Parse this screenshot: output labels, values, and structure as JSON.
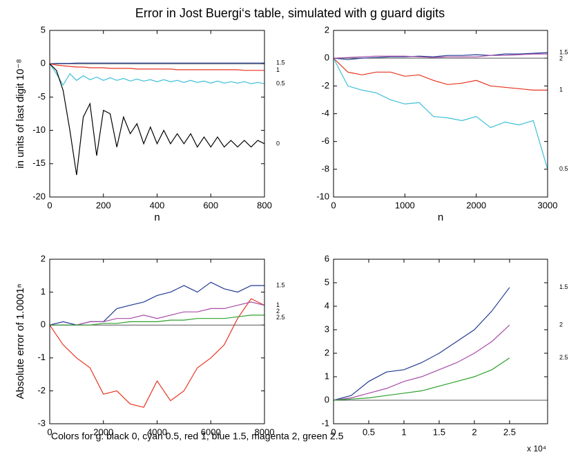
{
  "title": "Error in Jost Buergi‘s table, simulated with g guard digits",
  "footer": "Colors for g: black 0,  cyan 0.5,  red 1,  blue 1.5,  magenta  2, green 2.5",
  "chart_data": [
    {
      "type": "line",
      "ylabel": "in units of last digit 10⁻⁸",
      "xlabel": "n",
      "xlim": [
        0,
        800
      ],
      "ylim": [
        -20,
        5
      ],
      "xticks": [
        0,
        200,
        400,
        600,
        800
      ],
      "yticks": [
        5,
        0,
        -5,
        -10,
        -15,
        -20
      ],
      "x": [
        0,
        25,
        50,
        75,
        100,
        125,
        150,
        175,
        200,
        225,
        250,
        275,
        300,
        325,
        350,
        375,
        400,
        425,
        450,
        475,
        500,
        525,
        550,
        575,
        600,
        625,
        650,
        675,
        700,
        725,
        750,
        775,
        800
      ],
      "series": [
        {
          "name": "1.5",
          "color": "#1f3a93",
          "values": [
            0,
            0.05,
            0.05,
            0.05,
            0.1,
            0.1,
            0.1,
            0.1,
            0.1,
            0.1,
            0.1,
            0.1,
            0.1,
            0.1,
            0.1,
            0.1,
            0.1,
            0.1,
            0.1,
            0.1,
            0.1,
            0.1,
            0.1,
            0.1,
            0.1,
            0.1,
            0.1,
            0.1,
            0.1,
            0.1,
            0.1,
            0.1,
            0.1
          ]
        },
        {
          "name": "1",
          "color": "#e8321e",
          "values": [
            0,
            -0.2,
            -0.3,
            -0.4,
            -0.5,
            -0.5,
            -0.6,
            -0.6,
            -0.6,
            -0.7,
            -0.7,
            -0.7,
            -0.7,
            -0.8,
            -0.8,
            -0.8,
            -0.8,
            -0.8,
            -0.8,
            -0.9,
            -0.9,
            -0.9,
            -0.9,
            -0.9,
            -0.9,
            -0.9,
            -0.9,
            -0.9,
            -0.9,
            -1,
            -1,
            -1,
            -1
          ]
        },
        {
          "name": "0.5",
          "color": "#3ec0d8",
          "values": [
            0,
            -1.5,
            -3.2,
            -1.5,
            -2.5,
            -1.8,
            -2.4,
            -2,
            -2.5,
            -2.1,
            -2.5,
            -2.2,
            -2.6,
            -2.3,
            -2.6,
            -2.4,
            -2.7,
            -2.4,
            -2.7,
            -2.5,
            -2.8,
            -2.5,
            -2.8,
            -2.6,
            -2.9,
            -2.6,
            -2.9,
            -2.7,
            -2.9,
            -2.7,
            -3,
            -2.8,
            -3
          ]
        },
        {
          "name": "0",
          "color": "#000000",
          "values": [
            0,
            -1,
            -4,
            -10,
            -16.7,
            -8,
            -6,
            -13.8,
            -7,
            -7.5,
            -12.5,
            -8,
            -10.5,
            -9,
            -12,
            -9.5,
            -12,
            -10,
            -12,
            -10.5,
            -12,
            -10.5,
            -12.5,
            -11,
            -12.5,
            -11,
            -12.5,
            -11.5,
            -12.5,
            -11.5,
            -12.5,
            -11.5,
            -12
          ]
        }
      ]
    },
    {
      "type": "line",
      "xlabel": "n",
      "xlim": [
        0,
        3000
      ],
      "ylim": [
        -10,
        2
      ],
      "xticks": [
        0,
        1000,
        2000,
        3000
      ],
      "yticks": [
        2,
        0,
        -2,
        -4,
        -6,
        -8,
        -10
      ],
      "x": [
        0,
        200,
        400,
        600,
        800,
        1000,
        1200,
        1400,
        1600,
        1800,
        2000,
        2200,
        2400,
        2600,
        2800,
        3000
      ],
      "series": [
        {
          "name": "1.5",
          "color": "#1f3a93",
          "values": [
            0,
            -0.1,
            0,
            0.05,
            0.1,
            0.1,
            0.15,
            0.1,
            0.2,
            0.2,
            0.25,
            0.2,
            0.3,
            0.3,
            0.35,
            0.4
          ]
        },
        {
          "name": "2",
          "color": "#a64ca6",
          "values": [
            0,
            0.05,
            0.1,
            0.15,
            0.15,
            0.15,
            0.1,
            0.05,
            0.1,
            0.1,
            0.1,
            0.2,
            0.2,
            0.25,
            0.3,
            0.3
          ]
        },
        {
          "name": "1",
          "color": "#e8321e",
          "values": [
            0,
            -1,
            -1.2,
            -1,
            -1,
            -1.3,
            -1.2,
            -1.6,
            -1.9,
            -1.8,
            -1.6,
            -2,
            -2.1,
            -2.2,
            -2.3,
            -2.3
          ]
        },
        {
          "name": "0.5",
          "color": "#3ec0d8",
          "values": [
            0,
            -2,
            -2.3,
            -2.5,
            -3,
            -3.3,
            -3.2,
            -4.2,
            -4.3,
            -4.5,
            -4.2,
            -5,
            -4.6,
            -4.8,
            -4.5,
            -8
          ]
        }
      ]
    },
    {
      "type": "line",
      "ylabel": "Absolute error of 1.0001ⁿ",
      "xlim": [
        0,
        8000
      ],
      "ylim": [
        -3,
        2
      ],
      "xticks": [
        0,
        2000,
        4000,
        6000,
        8000
      ],
      "yticks": [
        2,
        1,
        0,
        -1,
        -2,
        -3
      ],
      "x": [
        0,
        500,
        1000,
        1500,
        2000,
        2500,
        3000,
        3500,
        4000,
        4500,
        5000,
        5500,
        6000,
        6500,
        7000,
        7500,
        8000
      ],
      "series": [
        {
          "name": "1",
          "color": "#e8321e",
          "values": [
            0,
            -0.6,
            -1,
            -1.3,
            -2.1,
            -2,
            -2.4,
            -2.5,
            -1.7,
            -2.3,
            -2,
            -1.3,
            -1,
            -0.6,
            0.2,
            0.8,
            0.6
          ]
        },
        {
          "name": "1.5",
          "color": "#1f3a93",
          "values": [
            0,
            0.1,
            0,
            0.1,
            0.1,
            0.5,
            0.6,
            0.7,
            0.9,
            1,
            1.2,
            1,
            1.3,
            1.1,
            1,
            1.2,
            1.2
          ]
        },
        {
          "name": "2",
          "color": "#a64ca6",
          "values": [
            0,
            0,
            0,
            0.1,
            0.1,
            0.2,
            0.2,
            0.3,
            0.2,
            0.3,
            0.4,
            0.4,
            0.5,
            0.5,
            0.6,
            0.7,
            0.6
          ]
        },
        {
          "name": "2.5",
          "color": "#2ca02c",
          "values": [
            0,
            0,
            0,
            0,
            0.05,
            0.05,
            0.1,
            0.1,
            0.1,
            0.15,
            0.15,
            0.2,
            0.2,
            0.2,
            0.25,
            0.3,
            0.3
          ]
        }
      ]
    },
    {
      "type": "line",
      "x_multiplier": "x 10⁴",
      "xlim": [
        0,
        3.04
      ],
      "ylim": [
        -1,
        6
      ],
      "xticks": [
        0,
        0.5,
        1,
        1.5,
        2,
        2.5
      ],
      "yticks": [
        6,
        5,
        4,
        3,
        2,
        1,
        0,
        -1
      ],
      "x": [
        0,
        0.25,
        0.5,
        0.75,
        1,
        1.25,
        1.5,
        1.75,
        2,
        2.25,
        2.5
      ],
      "series": [
        {
          "name": "1.5",
          "color": "#1f3a93",
          "values": [
            0,
            0.2,
            0.8,
            1.2,
            1.3,
            1.6,
            2,
            2.5,
            3,
            3.8,
            4.8
          ]
        },
        {
          "name": "2",
          "color": "#a64ca6",
          "values": [
            0,
            0.1,
            0.3,
            0.5,
            0.8,
            1,
            1.3,
            1.6,
            2,
            2.5,
            3.2
          ]
        },
        {
          "name": "2.5",
          "color": "#2ca02c",
          "values": [
            0,
            0.05,
            0.1,
            0.2,
            0.3,
            0.4,
            0.6,
            0.8,
            1,
            1.3,
            1.8
          ]
        }
      ]
    }
  ]
}
